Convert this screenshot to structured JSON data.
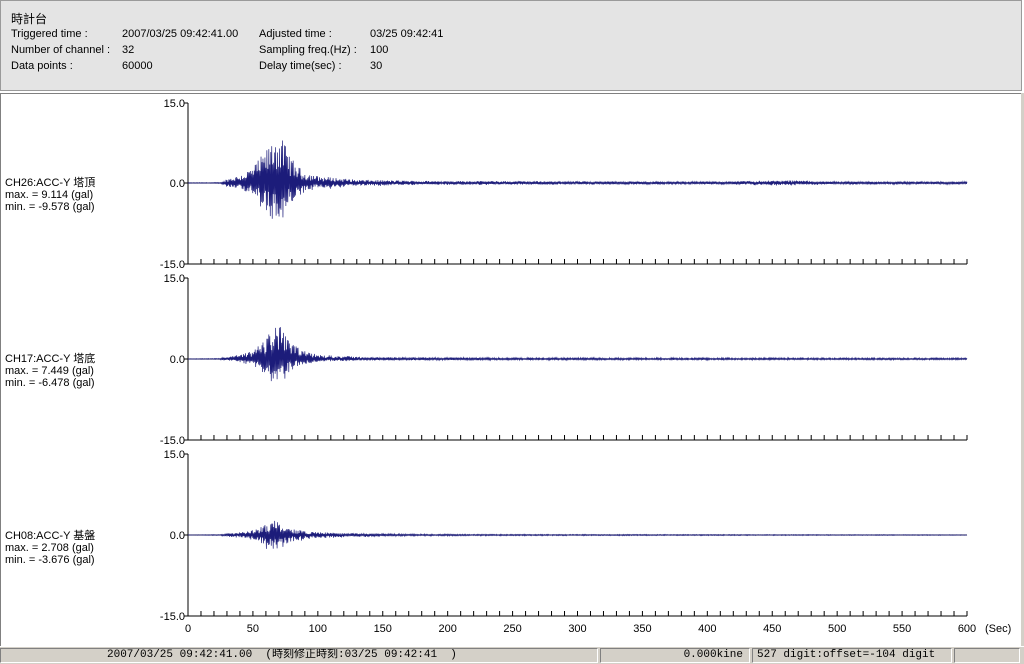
{
  "header": {
    "title": "時計台",
    "triggered_label": "Triggered time :",
    "triggered_value": "2007/03/25 09:42:41.00",
    "adjusted_label": "Adjusted time :",
    "adjusted_value": "03/25 09:42:41",
    "channels_label": "Number of channel :",
    "channels_value": "32",
    "sampling_label": "Sampling freq.(Hz) :",
    "sampling_value": "100",
    "datapoints_label": "Data points :",
    "datapoints_value": "60000",
    "delay_label": "Delay time(sec) :",
    "delay_value": "30"
  },
  "chart_data": {
    "type": "line",
    "x_unit": "(Sec)",
    "xlim": [
      0,
      600
    ],
    "x_ticks": [
      "0",
      "50",
      "100",
      "150",
      "200",
      "250",
      "300",
      "350",
      "400",
      "450",
      "500",
      "550",
      "600"
    ],
    "y_tick_labels": [
      "15.0",
      "0.0",
      "-15.0"
    ],
    "ylim": [
      -15,
      15
    ],
    "line_color": "#1c1c7a",
    "series": [
      {
        "channel": "CH26:ACC-Y 塔頂",
        "max_text": "max. = 9.114 (gal)",
        "min_text": "min. = -9.578 (gal)",
        "max": 9.114,
        "min": -9.578,
        "envelope": [
          [
            0,
            0.06
          ],
          [
            25,
            0.1
          ],
          [
            30,
            0.8
          ],
          [
            40,
            1.5
          ],
          [
            50,
            3.0
          ],
          [
            58,
            5.5
          ],
          [
            63,
            7.0
          ],
          [
            67,
            9.3
          ],
          [
            70,
            9.0
          ],
          [
            74,
            7.5
          ],
          [
            80,
            4.5
          ],
          [
            88,
            2.3
          ],
          [
            100,
            1.3
          ],
          [
            130,
            0.6
          ],
          [
            180,
            0.4
          ],
          [
            250,
            0.35
          ],
          [
            350,
            0.3
          ],
          [
            420,
            0.3
          ],
          [
            440,
            0.45
          ],
          [
            470,
            0.5
          ],
          [
            490,
            0.3
          ],
          [
            600,
            0.25
          ]
        ]
      },
      {
        "channel": "CH17:ACC-Y 塔底",
        "max_text": "max. = 7.449 (gal)",
        "min_text": "min. = -6.478 (gal)",
        "max": 7.449,
        "min": -6.478,
        "envelope": [
          [
            0,
            0.05
          ],
          [
            22,
            0.1
          ],
          [
            30,
            0.4
          ],
          [
            40,
            0.8
          ],
          [
            50,
            1.5
          ],
          [
            58,
            3.5
          ],
          [
            63,
            5.0
          ],
          [
            68,
            7.2
          ],
          [
            72,
            5.8
          ],
          [
            78,
            3.2
          ],
          [
            88,
            1.6
          ],
          [
            100,
            0.8
          ],
          [
            140,
            0.35
          ],
          [
            250,
            0.25
          ],
          [
            600,
            0.2
          ]
        ]
      },
      {
        "channel": "CH08:ACC-Y 基盤",
        "max_text": "max. = 2.708 (gal)",
        "min_text": "min. = -3.676 (gal)",
        "max": 2.708,
        "min": -3.676,
        "envelope": [
          [
            0,
            0.03
          ],
          [
            25,
            0.08
          ],
          [
            30,
            0.3
          ],
          [
            45,
            0.6
          ],
          [
            55,
            1.3
          ],
          [
            62,
            2.2
          ],
          [
            67,
            2.8
          ],
          [
            72,
            2.0
          ],
          [
            80,
            1.1
          ],
          [
            95,
            0.6
          ],
          [
            120,
            0.35
          ],
          [
            160,
            0.2
          ],
          [
            230,
            0.12
          ],
          [
            600,
            0.06
          ]
        ]
      }
    ]
  },
  "status": {
    "time": "2007/03/25 09:42:41.00  (時刻修正時刻:03/25 09:42:41  )",
    "velocity": "0.000kine",
    "digit": "527 digit:offset=-104 digit"
  }
}
